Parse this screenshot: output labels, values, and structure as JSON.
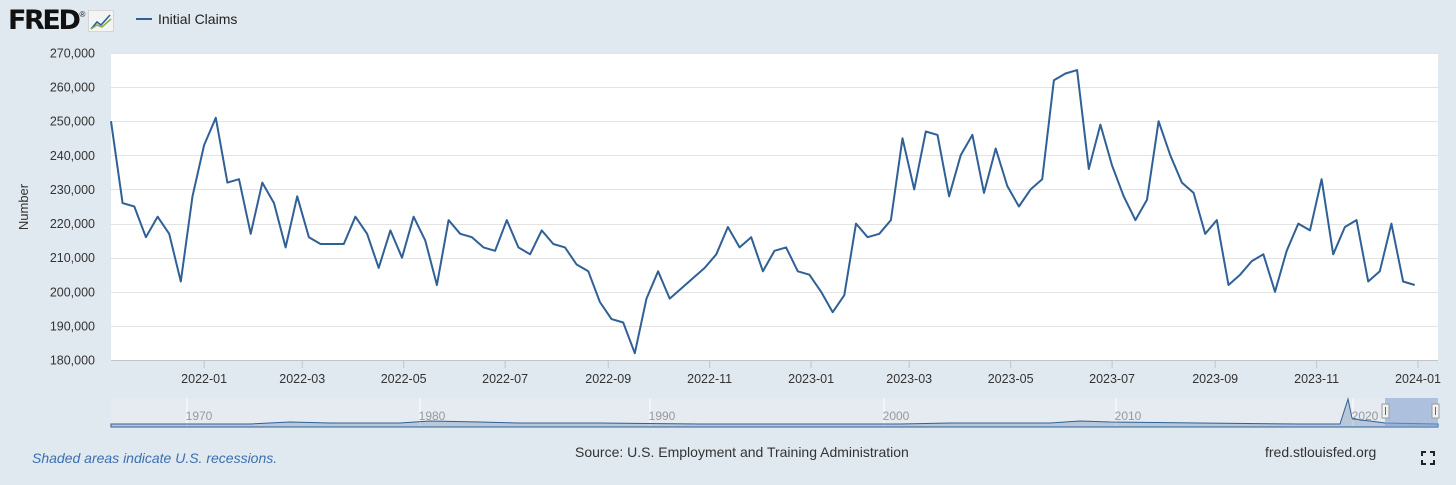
{
  "header": {
    "logo_text": "FRED",
    "logo_mark": "®",
    "logo_icon": "line-chart-icon",
    "legend_label": "Initial Claims"
  },
  "chart_data": {
    "type": "line",
    "title": "",
    "xlabel": "",
    "ylabel": "Number",
    "ylim": [
      180000,
      270000
    ],
    "y_ticks": [
      180000,
      190000,
      200000,
      210000,
      220000,
      230000,
      240000,
      250000,
      260000,
      270000
    ],
    "y_tick_labels": [
      "180,000",
      "190,000",
      "200,000",
      "210,000",
      "220,000",
      "230,000",
      "240,000",
      "250,000",
      "260,000",
      "270,000"
    ],
    "xlim": [
      "2021-11-06",
      "2024-01-13"
    ],
    "x_ticks": [
      "2022-01-01",
      "2022-03-01",
      "2022-05-01",
      "2022-07-01",
      "2022-09-01",
      "2022-11-01",
      "2023-01-01",
      "2023-03-01",
      "2023-05-01",
      "2023-07-01",
      "2023-09-01",
      "2023-11-01",
      "2024-01-01"
    ],
    "x_tick_labels": [
      "2022-01",
      "2022-03",
      "2022-05",
      "2022-07",
      "2022-09",
      "2022-11",
      "2023-01",
      "2023-03",
      "2023-05",
      "2023-07",
      "2023-09",
      "2023-11",
      "2024-01"
    ],
    "grid": true,
    "legend": "top-left",
    "line_color": "#2f6096",
    "series": [
      {
        "name": "Initial Claims",
        "start_date": "2021-11-06",
        "step_days": 7,
        "values": [
          250000,
          226000,
          225000,
          216000,
          222000,
          217000,
          203000,
          228000,
          243000,
          251000,
          232000,
          233000,
          217000,
          232000,
          226000,
          213000,
          228000,
          216000,
          214000,
          214000,
          214000,
          222000,
          217000,
          207000,
          218000,
          210000,
          222000,
          215000,
          202000,
          221000,
          217000,
          216000,
          213000,
          212000,
          221000,
          213000,
          211000,
          218000,
          214000,
          213000,
          208000,
          206000,
          197000,
          192000,
          191000,
          182000,
          198000,
          206000,
          198000,
          201000,
          204000,
          207000,
          211000,
          219000,
          213000,
          216000,
          206000,
          212000,
          213000,
          206000,
          205000,
          200000,
          194000,
          199000,
          220000,
          216000,
          217000,
          221000,
          245000,
          230000,
          247000,
          246000,
          228000,
          240000,
          246000,
          229000,
          242000,
          231000,
          225000,
          230000,
          233000,
          262000,
          264000,
          265000,
          236000,
          249000,
          237000,
          228000,
          221000,
          227000,
          250000,
          240000,
          232000,
          229000,
          217000,
          221000,
          202000,
          205000,
          209000,
          211000,
          200000,
          212000,
          220000,
          218000,
          233000,
          211000,
          219000,
          221000,
          203000,
          206000,
          220000,
          203000,
          202000
        ]
      }
    ],
    "navigator": {
      "year_labels": [
        "1970",
        "1980",
        "1990",
        "2000",
        "2010",
        "2020"
      ]
    }
  },
  "footer": {
    "recession_note": "Shaded areas indicate U.S. recessions.",
    "source": "Source: U.S. Employment and Training Administration",
    "site": "fred.stlouisfed.org",
    "fullscreen_icon": "expand-icon"
  }
}
